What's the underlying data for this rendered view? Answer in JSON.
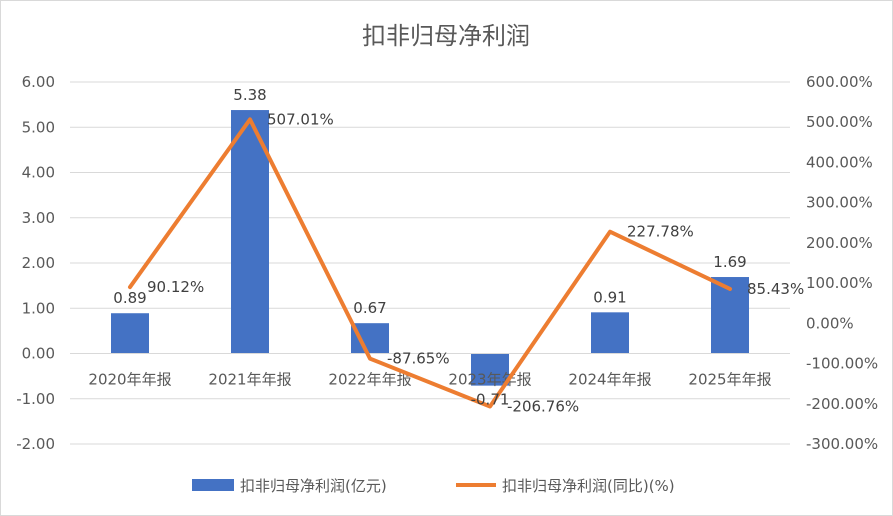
{
  "chart_data": {
    "type": "bar",
    "title": "扣非归母净利润",
    "categories": [
      "2020年年报",
      "2021年年报",
      "2022年年报",
      "2023年年报",
      "2024年年报",
      "2025年年报"
    ],
    "series": [
      {
        "name": "扣非归母净利润(亿元)",
        "type": "bar",
        "axis": "left",
        "color": "#4472C4",
        "values": [
          0.89,
          5.38,
          0.67,
          -0.71,
          0.91,
          1.69
        ],
        "labels": [
          "0.89",
          "5.38",
          "0.67",
          "-0.71",
          "0.91",
          "1.69"
        ]
      },
      {
        "name": "扣非归母净利润(同比)(%)",
        "type": "line",
        "axis": "right",
        "color": "#ED7D31",
        "values": [
          90.12,
          507.01,
          -87.65,
          -206.76,
          227.78,
          85.43
        ],
        "labels": [
          "90.12%",
          "507.01%",
          "-87.65%",
          "-206.76%",
          "227.78%",
          "85.43%"
        ]
      }
    ],
    "y_left": {
      "ylim": [
        -2,
        6
      ],
      "ticks": [
        -2,
        -1,
        0,
        1,
        2,
        3,
        4,
        5,
        6
      ],
      "tick_labels": [
        "-2.00",
        "-1.00",
        "0.00",
        "1.00",
        "2.00",
        "3.00",
        "4.00",
        "5.00",
        "6.00"
      ]
    },
    "y_right": {
      "ylim": [
        -300,
        600
      ],
      "ticks": [
        -300,
        -200,
        -100,
        0,
        100,
        200,
        300,
        400,
        500,
        600
      ],
      "tick_labels": [
        "-300.00%",
        "-200.00%",
        "-100.00%",
        "0.00%",
        "100.00%",
        "200.00%",
        "300.00%",
        "400.00%",
        "500.00%",
        "600.00%"
      ]
    },
    "grid": true,
    "legend_position": "bottom"
  }
}
